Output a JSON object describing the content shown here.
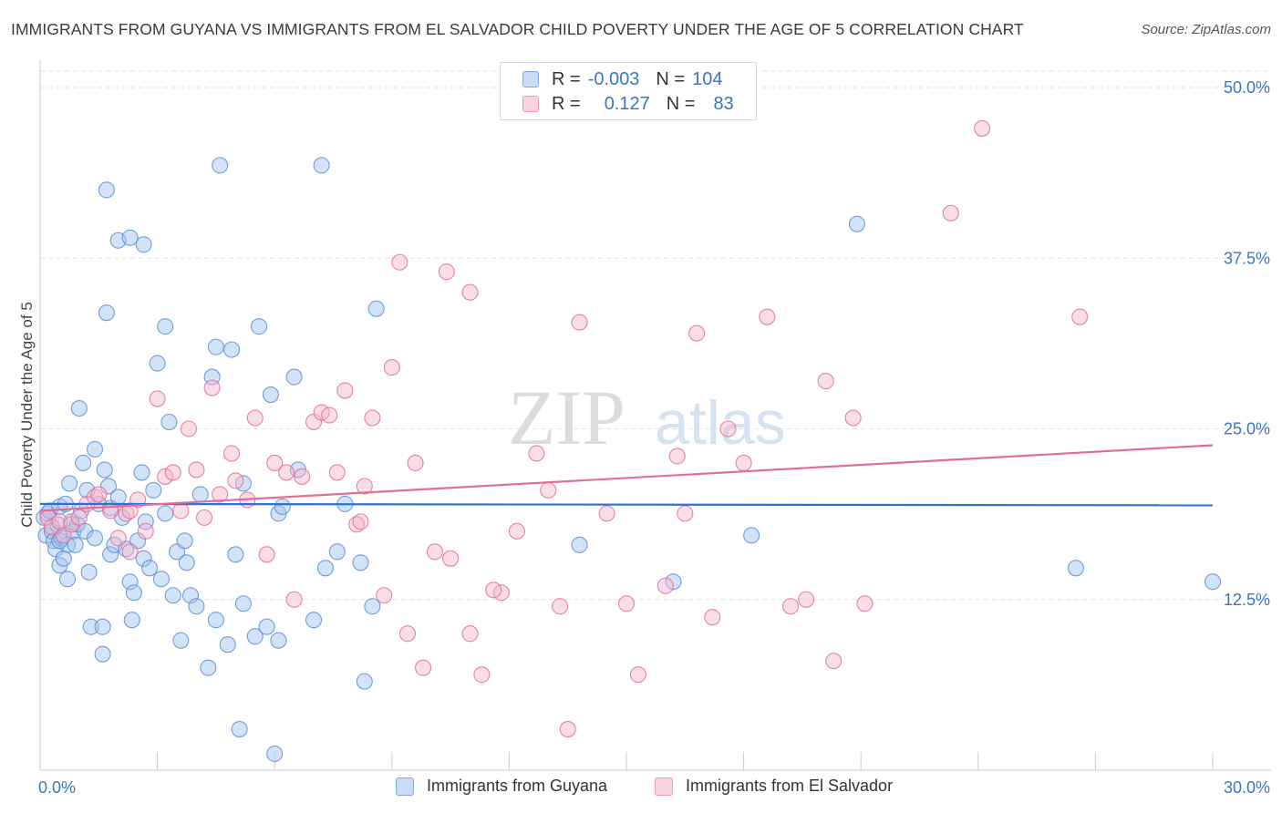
{
  "title": "IMMIGRANTS FROM GUYANA VS IMMIGRANTS FROM EL SALVADOR CHILD POVERTY UNDER THE AGE OF 5 CORRELATION CHART",
  "source": "Source: ZipAtlas.com",
  "watermark": {
    "zip": "ZIP",
    "atlas": "atlas"
  },
  "legend": {
    "rows": [
      {
        "r_label": "R =",
        "r_value": "-0.003",
        "n_label": "N =",
        "n_value": "104",
        "color": "#9dc0ee"
      },
      {
        "r_label": "R =",
        "r_value": "0.127",
        "n_label": "N =",
        "n_value": "83",
        "color": "#f3b6c9"
      }
    ]
  },
  "bottom_legend": [
    {
      "label": "Immigrants from Guyana",
      "color": "#9dc0ee"
    },
    {
      "label": "Immigrants from El Salvador",
      "color": "#f3b6c9"
    }
  ],
  "chart_data": {
    "type": "scatter",
    "title": "IMMIGRANTS FROM GUYANA VS IMMIGRANTS FROM EL SALVADOR CHILD POVERTY UNDER THE AGE OF 5 CORRELATION CHART",
    "xlabel": "",
    "ylabel": "Child Poverty Under the Age of 5",
    "xlim": [
      0,
      30
    ],
    "ylim": [
      0,
      50
    ],
    "x_tick_labels": [
      "0.0%",
      "30.0%"
    ],
    "y_tick_labels": [
      "12.5%",
      "25.0%",
      "37.5%",
      "50.0%"
    ],
    "y_ticks": [
      12.5,
      25,
      37.5,
      50
    ],
    "grid": true,
    "legend_position": "top-center",
    "series": [
      {
        "name": "Immigrants from Guyana",
        "color": "#5b8fd6",
        "fill": "#9dc0ee",
        "trend": {
          "x": [
            0,
            30
          ],
          "y": [
            19.5,
            19.4
          ]
        },
        "points": [
          [
            0.1,
            18.5
          ],
          [
            0.15,
            17.2
          ],
          [
            0.2,
            18.8
          ],
          [
            0.25,
            19.0
          ],
          [
            0.3,
            17.5
          ],
          [
            0.35,
            16.8
          ],
          [
            0.4,
            16.2
          ],
          [
            0.45,
            18.0
          ],
          [
            0.5,
            15.0
          ],
          [
            0.5,
            19.3
          ],
          [
            0.55,
            17.0
          ],
          [
            0.6,
            15.5
          ],
          [
            0.65,
            19.5
          ],
          [
            0.7,
            16.5
          ],
          [
            0.7,
            14.0
          ],
          [
            0.75,
            21.0
          ],
          [
            0.8,
            18.2
          ],
          [
            0.85,
            17.5
          ],
          [
            0.9,
            16.5
          ],
          [
            0.95,
            18.0
          ],
          [
            1.0,
            26.5
          ],
          [
            1.05,
            19.0
          ],
          [
            1.1,
            22.5
          ],
          [
            1.15,
            17.5
          ],
          [
            1.2,
            20.5
          ],
          [
            1.25,
            14.5
          ],
          [
            1.3,
            10.5
          ],
          [
            1.4,
            17.0
          ],
          [
            1.4,
            23.5
          ],
          [
            1.5,
            19.5
          ],
          [
            1.6,
            10.5
          ],
          [
            1.6,
            8.5
          ],
          [
            1.65,
            22.0
          ],
          [
            1.7,
            33.5
          ],
          [
            1.75,
            20.8
          ],
          [
            1.8,
            19.2
          ],
          [
            1.8,
            15.8
          ],
          [
            1.9,
            16.5
          ],
          [
            2.0,
            20.0
          ],
          [
            2.1,
            18.5
          ],
          [
            2.2,
            16.2
          ],
          [
            2.3,
            13.8
          ],
          [
            2.35,
            11.0
          ],
          [
            2.4,
            13.0
          ],
          [
            2.5,
            16.8
          ],
          [
            2.6,
            21.8
          ],
          [
            2.65,
            15.5
          ],
          [
            2.7,
            18.2
          ],
          [
            2.8,
            14.8
          ],
          [
            2.9,
            20.5
          ],
          [
            3.0,
            29.8
          ],
          [
            3.1,
            14.0
          ],
          [
            3.2,
            18.8
          ],
          [
            3.3,
            25.5
          ],
          [
            3.4,
            12.8
          ],
          [
            3.5,
            16.0
          ],
          [
            3.6,
            9.5
          ],
          [
            3.7,
            16.8
          ],
          [
            3.75,
            15.2
          ],
          [
            3.85,
            12.8
          ],
          [
            4.0,
            12.0
          ],
          [
            4.1,
            20.2
          ],
          [
            4.3,
            7.5
          ],
          [
            4.5,
            11.0
          ],
          [
            4.4,
            28.8
          ],
          [
            4.5,
            31.0
          ],
          [
            4.8,
            9.2
          ],
          [
            4.9,
            30.8
          ],
          [
            5.0,
            15.8
          ],
          [
            5.2,
            21.0
          ],
          [
            5.5,
            9.8
          ],
          [
            5.6,
            32.5
          ],
          [
            5.8,
            10.5
          ],
          [
            5.9,
            27.5
          ],
          [
            6.0,
            1.2
          ],
          [
            6.1,
            9.5
          ],
          [
            5.1,
            3.0
          ],
          [
            6.1,
            18.8
          ],
          [
            6.2,
            19.3
          ],
          [
            6.5,
            28.8
          ],
          [
            6.6,
            22.0
          ],
          [
            7.3,
            14.8
          ],
          [
            7.6,
            16.0
          ],
          [
            7.8,
            19.5
          ],
          [
            8.2,
            15.2
          ],
          [
            8.3,
            6.5
          ],
          [
            8.5,
            12.0
          ],
          [
            8.6,
            33.8
          ],
          [
            1.7,
            42.5
          ],
          [
            2.0,
            38.8
          ],
          [
            2.3,
            39.0
          ],
          [
            2.65,
            38.5
          ],
          [
            3.2,
            32.5
          ],
          [
            4.6,
            44.3
          ],
          [
            7.2,
            44.3
          ],
          [
            5.2,
            12.2
          ],
          [
            7.0,
            11.0
          ],
          [
            13.8,
            16.5
          ],
          [
            16.2,
            13.8
          ],
          [
            18.2,
            17.2
          ],
          [
            20.9,
            40.0
          ],
          [
            26.5,
            14.8
          ],
          [
            30.0,
            13.8
          ],
          [
            0.5,
            16.8
          ]
        ]
      },
      {
        "name": "Immigrants from El Salvador",
        "color": "#e36d96",
        "fill": "#f3b6c9",
        "trend": {
          "x": [
            0,
            30
          ],
          "y": [
            19.0,
            23.8
          ]
        },
        "points": [
          [
            0.2,
            18.5
          ],
          [
            0.3,
            17.8
          ],
          [
            0.5,
            18.2
          ],
          [
            0.6,
            17.2
          ],
          [
            0.8,
            18.0
          ],
          [
            1.0,
            18.5
          ],
          [
            1.2,
            19.5
          ],
          [
            1.4,
            20.0
          ],
          [
            1.5,
            20.2
          ],
          [
            1.8,
            19.0
          ],
          [
            2.0,
            17.0
          ],
          [
            2.2,
            18.8
          ],
          [
            2.3,
            16.0
          ],
          [
            2.5,
            19.8
          ],
          [
            2.7,
            17.5
          ],
          [
            3.0,
            27.2
          ],
          [
            3.2,
            21.5
          ],
          [
            3.4,
            21.8
          ],
          [
            3.6,
            19.0
          ],
          [
            3.8,
            25.0
          ],
          [
            4.0,
            22.0
          ],
          [
            4.2,
            18.5
          ],
          [
            4.4,
            28.0
          ],
          [
            4.6,
            20.2
          ],
          [
            4.9,
            23.2
          ],
          [
            5.0,
            21.2
          ],
          [
            5.3,
            19.8
          ],
          [
            5.5,
            25.8
          ],
          [
            5.8,
            15.8
          ],
          [
            6.0,
            22.5
          ],
          [
            6.3,
            21.8
          ],
          [
            6.5,
            12.5
          ],
          [
            6.7,
            21.5
          ],
          [
            7.0,
            25.5
          ],
          [
            7.2,
            26.2
          ],
          [
            7.4,
            26.0
          ],
          [
            7.6,
            21.8
          ],
          [
            7.8,
            27.8
          ],
          [
            8.1,
            18.0
          ],
          [
            8.3,
            20.8
          ],
          [
            8.5,
            25.8
          ],
          [
            8.8,
            12.8
          ],
          [
            9.0,
            29.5
          ],
          [
            9.4,
            10.0
          ],
          [
            9.8,
            7.5
          ],
          [
            10.1,
            16.0
          ],
          [
            10.5,
            15.5
          ],
          [
            11.0,
            10.0
          ],
          [
            11.3,
            7.0
          ],
          [
            11.8,
            13.0
          ],
          [
            12.2,
            17.5
          ],
          [
            12.7,
            23.2
          ],
          [
            13.0,
            20.5
          ],
          [
            13.3,
            12.0
          ],
          [
            13.5,
            3.0
          ],
          [
            14.5,
            18.8
          ],
          [
            15.0,
            12.2
          ],
          [
            15.3,
            7.0
          ],
          [
            16.0,
            13.5
          ],
          [
            16.3,
            23.0
          ],
          [
            16.5,
            18.8
          ],
          [
            17.2,
            11.2
          ],
          [
            17.6,
            25.0
          ],
          [
            18.0,
            22.5
          ],
          [
            19.2,
            12.0
          ],
          [
            19.6,
            12.5
          ],
          [
            20.3,
            8.0
          ],
          [
            20.8,
            25.8
          ],
          [
            21.1,
            12.2
          ],
          [
            9.2,
            37.2
          ],
          [
            10.4,
            36.5
          ],
          [
            11.0,
            35.0
          ],
          [
            13.8,
            32.8
          ],
          [
            16.8,
            32.0
          ],
          [
            18.6,
            33.2
          ],
          [
            20.1,
            28.5
          ],
          [
            23.3,
            40.8
          ],
          [
            24.1,
            47.0
          ],
          [
            26.6,
            33.2
          ],
          [
            8.2,
            18.2
          ],
          [
            9.6,
            22.5
          ],
          [
            2.3,
            19.0
          ],
          [
            11.6,
            13.2
          ]
        ]
      }
    ]
  }
}
